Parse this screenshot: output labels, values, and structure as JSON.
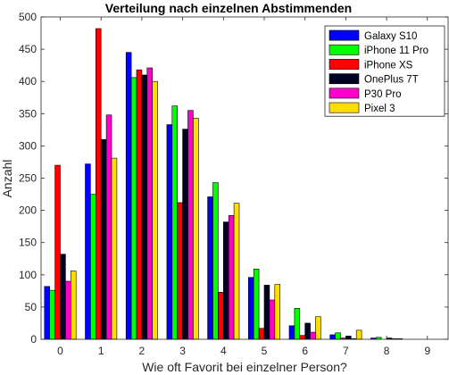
{
  "chart_data": {
    "type": "bar",
    "title": "Verteilung nach einzelnen Abstimmenden",
    "xlabel": "Wie oft Favorit bei einzelner Person?",
    "ylabel": "Anzahl",
    "categories": [
      "0",
      "1",
      "2",
      "3",
      "4",
      "5",
      "6",
      "7",
      "8",
      "9"
    ],
    "ylim": [
      0,
      500
    ],
    "yticks": [
      0,
      50,
      100,
      150,
      200,
      250,
      300,
      350,
      400,
      450,
      500
    ],
    "grid": false,
    "legend_position": "top-right",
    "series": [
      {
        "name": "Galaxy S10",
        "color": "#0000ff",
        "values": [
          82,
          272,
          445,
          333,
          221,
          96,
          21,
          7,
          2,
          0
        ]
      },
      {
        "name": "iPhone 11 Pro",
        "color": "#00ff00",
        "values": [
          76,
          225,
          406,
          362,
          243,
          109,
          48,
          10,
          3,
          0
        ]
      },
      {
        "name": "iPhone XS",
        "color": "#ff0000",
        "values": [
          270,
          482,
          418,
          212,
          73,
          17,
          6,
          2,
          0,
          0
        ]
      },
      {
        "name": "OnePlus 7T",
        "color": "#000022",
        "values": [
          132,
          310,
          410,
          326,
          182,
          84,
          25,
          5,
          2,
          0
        ]
      },
      {
        "name": "P30 Pro",
        "color": "#ff00cc",
        "values": [
          90,
          348,
          421,
          355,
          192,
          61,
          11,
          1,
          1,
          0
        ]
      },
      {
        "name": "Pixel 3",
        "color": "#ffdd00",
        "values": [
          106,
          281,
          400,
          343,
          211,
          85,
          35,
          14,
          1,
          0
        ]
      }
    ]
  }
}
